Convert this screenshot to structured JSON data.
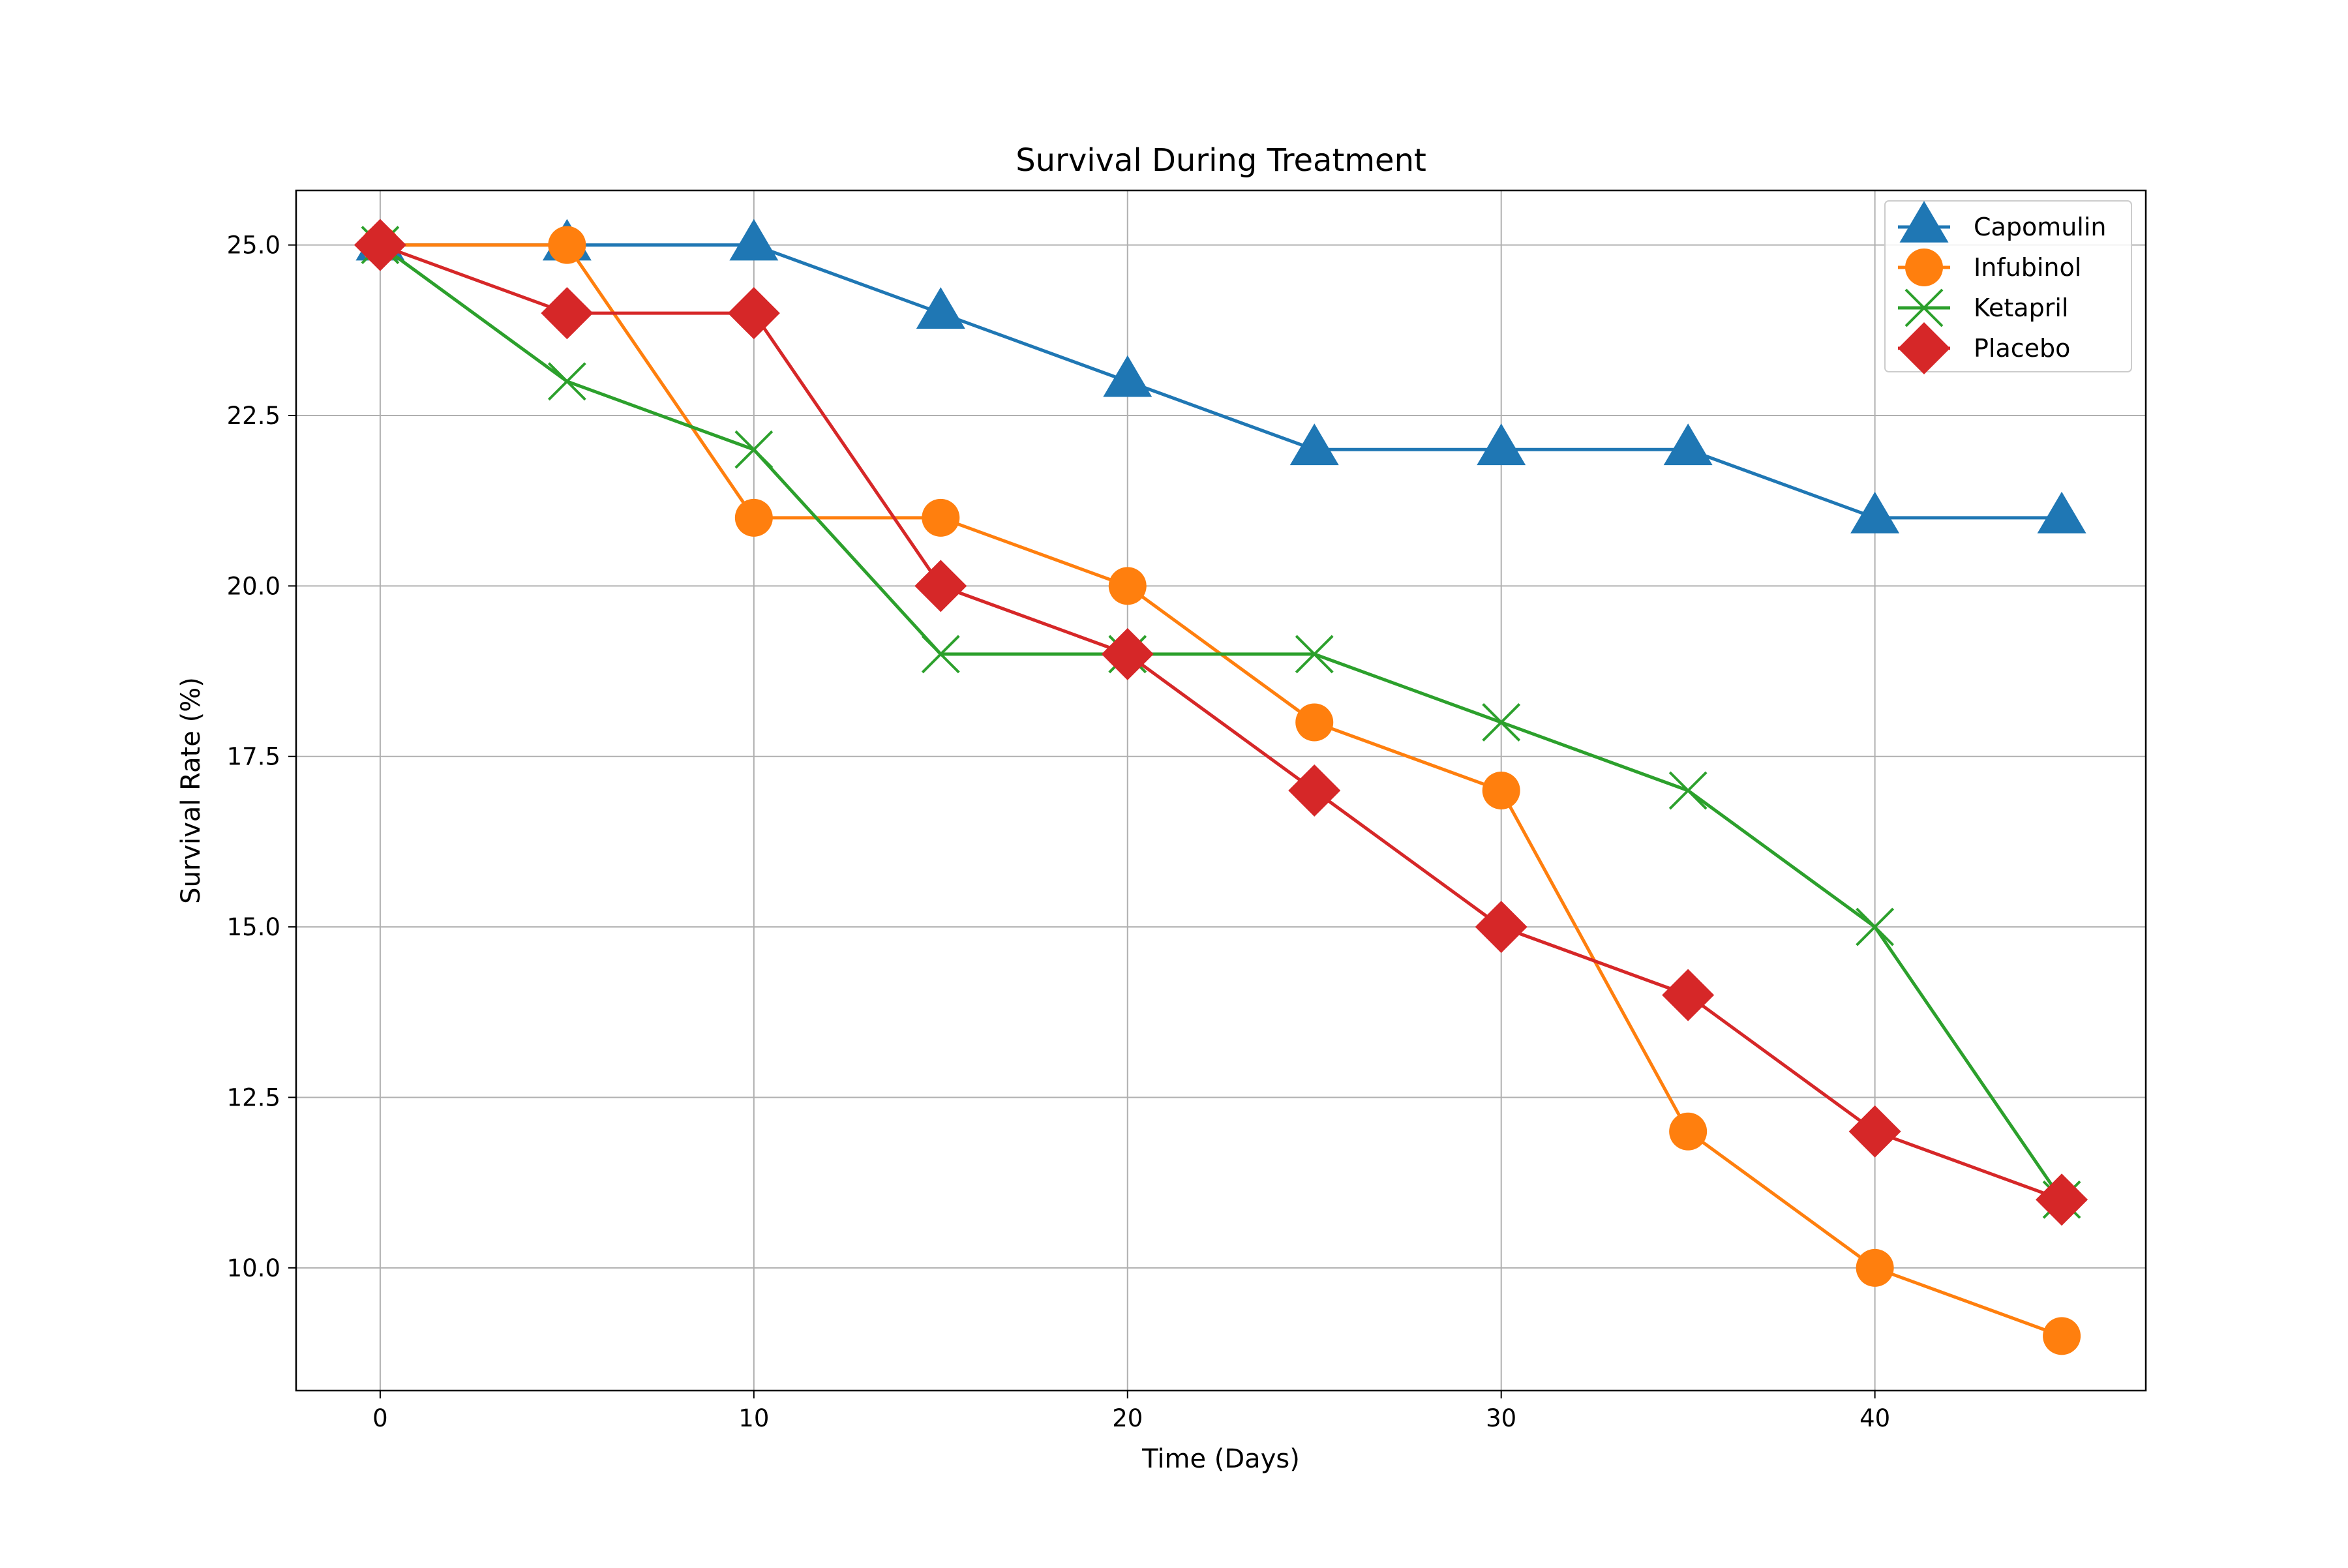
{
  "chart_data": {
    "type": "line",
    "title": "Survival During Treatment",
    "xlabel": "Time (Days)",
    "ylabel": "Survival Rate (%)",
    "xlim": [
      -2.25,
      47.25
    ],
    "ylim": [
      8.2,
      25.8
    ],
    "x_ticks": [
      0,
      10,
      20,
      30,
      40
    ],
    "x_tick_labels": [
      "0",
      "10",
      "20",
      "30",
      "40"
    ],
    "y_ticks": [
      10.0,
      12.5,
      15.0,
      17.5,
      20.0,
      22.5,
      25.0
    ],
    "y_tick_labels": [
      "10.0",
      "12.5",
      "15.0",
      "17.5",
      "20.0",
      "22.5",
      "25.0"
    ],
    "grid": true,
    "legend_position": "top-right",
    "x": [
      0,
      5,
      10,
      15,
      20,
      25,
      30,
      35,
      40,
      45
    ],
    "series": [
      {
        "name": "Capomulin",
        "color": "#1f77b4",
        "marker": "triangle",
        "values": [
          25,
          25,
          25,
          24,
          23,
          22,
          22,
          22,
          21,
          21
        ]
      },
      {
        "name": "Infubinol",
        "color": "#ff7f0e",
        "marker": "circle",
        "values": [
          25,
          25,
          21,
          21,
          20,
          18,
          17,
          12,
          10,
          9
        ]
      },
      {
        "name": "Ketapril",
        "color": "#2ca02c",
        "marker": "x",
        "values": [
          25,
          23,
          22,
          19,
          19,
          19,
          18,
          17,
          15,
          11
        ]
      },
      {
        "name": "Placebo",
        "color": "#d62728",
        "marker": "diamond",
        "values": [
          25,
          24,
          24,
          20,
          19,
          17,
          15,
          14,
          12,
          11
        ]
      }
    ]
  }
}
